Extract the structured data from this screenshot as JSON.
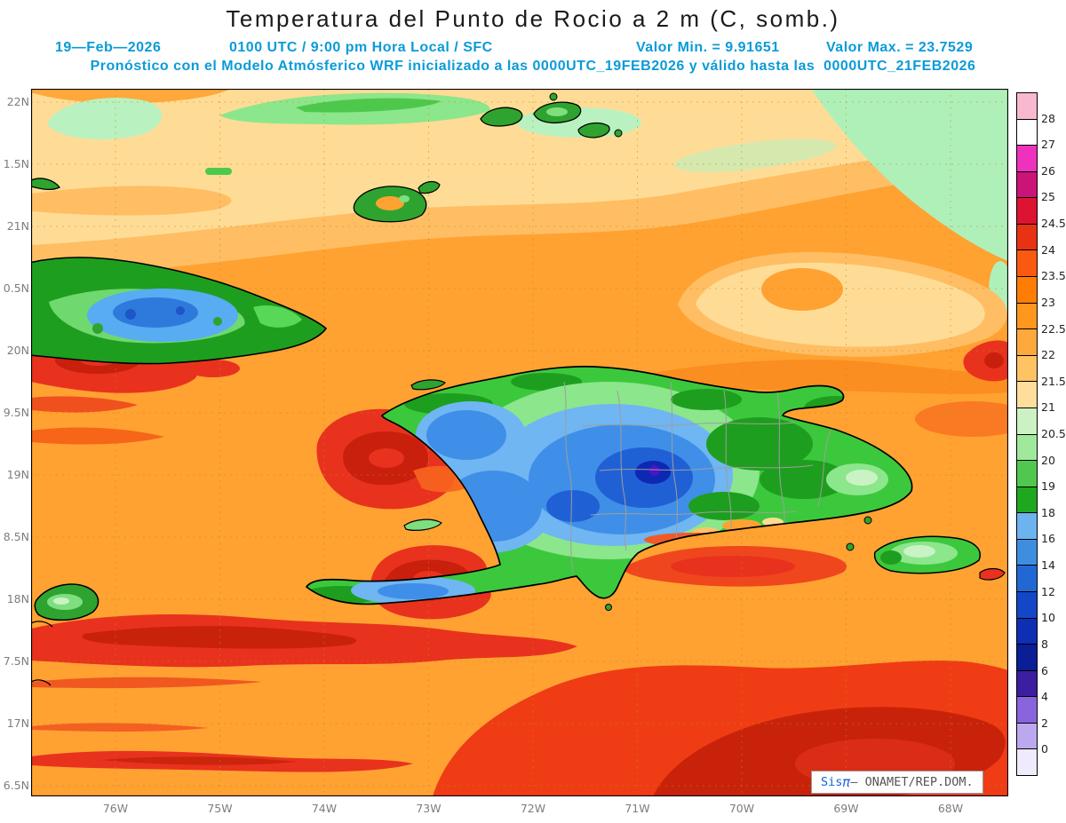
{
  "title": "Temperatura del Punto de Rocio a 2 m (C, somb.)",
  "header": {
    "date": "19—Feb—2026",
    "time_info": "0100 UTC / 9:00 pm Hora Local / SFC",
    "min_value_label": "Valor Min. = 9.91651",
    "max_value_label": "Valor Max. = 23.7529",
    "forecast_line": "Pronóstico con el Modelo Atmósferico WRF inicializado a las 0000UTC_19FEB2026 y válido hasta las  0000UTC_21FEB2026"
  },
  "map": {
    "lat_labels": [
      "22N",
      "1.5N",
      "21N",
      "0.5N",
      "20N",
      "9.5N",
      "19N",
      "8.5N",
      "18N",
      "7.5N",
      "17N",
      "6.5N"
    ],
    "lon_labels": [
      "76W",
      "75W",
      "74W",
      "73W",
      "72W",
      "71W",
      "70W",
      "69W",
      "68W"
    ]
  },
  "colorbar": {
    "labels": [
      "28",
      "27",
      "26",
      "25",
      "24.5",
      "24",
      "23.5",
      "23",
      "22.5",
      "22",
      "21.5",
      "21",
      "20.5",
      "20",
      "19",
      "18",
      "16",
      "14",
      "12",
      "10",
      "8",
      "6",
      "4",
      "2",
      "0"
    ],
    "colors": [
      "#F8B8CF",
      "#FFFFFF",
      "#EE32BE",
      "#CC1478",
      "#DC1432",
      "#E83214",
      "#FA5A0F",
      "#FF7D05",
      "#FF961E",
      "#FFA83C",
      "#FFC364",
      "#FFDE9B",
      "#CCF2C4",
      "#A0E89B",
      "#50C850",
      "#1FA81F",
      "#6CB3F0",
      "#3E8EE0",
      "#2268D4",
      "#1447C8",
      "#0E2EB4",
      "#0A1E96",
      "#3C1EA0",
      "#8A64DC",
      "#BCA8EE",
      "#EFEAFC"
    ]
  },
  "credit": {
    "prefix": "Sis",
    "pi": "π",
    "suffix": "– ONAMET/REP.DOM."
  },
  "colors": {
    "header_blue": "#0b9bd8",
    "credit_blue": "#1464dc",
    "sea_orange": "#FFA232"
  }
}
